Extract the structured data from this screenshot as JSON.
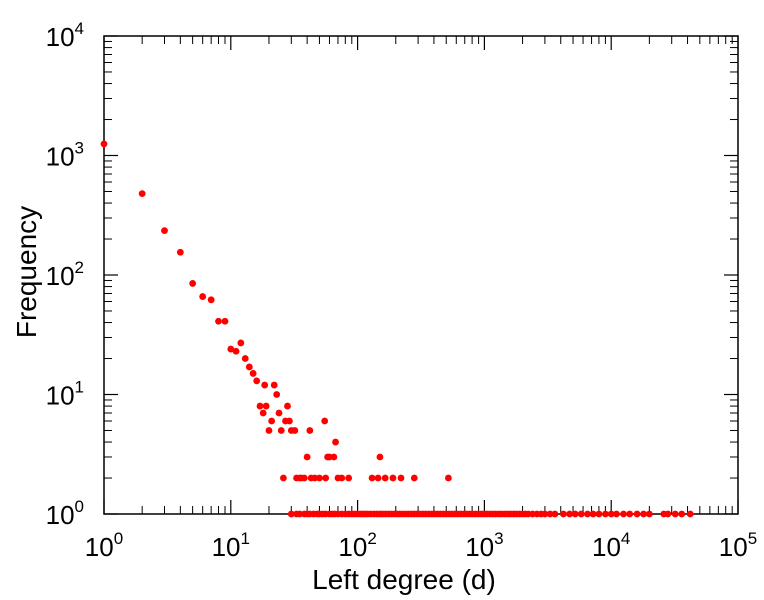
{
  "chart_data": {
    "type": "scatter",
    "xlabel": "Left degree (d)",
    "ylabel": "Frequency",
    "x_scale": "log",
    "y_scale": "log",
    "xlim": [
      1,
      100000
    ],
    "ylim": [
      1,
      10000
    ],
    "x_ticks": [
      {
        "base": "10",
        "exp": "0",
        "value": 1
      },
      {
        "base": "10",
        "exp": "1",
        "value": 10
      },
      {
        "base": "10",
        "exp": "2",
        "value": 100
      },
      {
        "base": "10",
        "exp": "3",
        "value": 1000
      },
      {
        "base": "10",
        "exp": "4",
        "value": 10000
      },
      {
        "base": "10",
        "exp": "5",
        "value": 100000
      }
    ],
    "y_ticks": [
      {
        "base": "10",
        "exp": "0",
        "value": 1
      },
      {
        "base": "10",
        "exp": "1",
        "value": 10
      },
      {
        "base": "10",
        "exp": "2",
        "value": 100
      },
      {
        "base": "10",
        "exp": "3",
        "value": 1000
      },
      {
        "base": "10",
        "exp": "4",
        "value": 10000
      }
    ],
    "grid": false,
    "marker_color": "#ff0000",
    "points": [
      [
        1,
        1250
      ],
      [
        2,
        480
      ],
      [
        3,
        235
      ],
      [
        4,
        155
      ],
      [
        5,
        85
      ],
      [
        6,
        66
      ],
      [
        7,
        62
      ],
      [
        8,
        41
      ],
      [
        9,
        41
      ],
      [
        10,
        24
      ],
      [
        11,
        23
      ],
      [
        12,
        27
      ],
      [
        13,
        20
      ],
      [
        14,
        17
      ],
      [
        15,
        15
      ],
      [
        16,
        13
      ],
      [
        17,
        8
      ],
      [
        18,
        7
      ],
      [
        18.5,
        12
      ],
      [
        19,
        8
      ],
      [
        20,
        5
      ],
      [
        21,
        6
      ],
      [
        22,
        12
      ],
      [
        23,
        10
      ],
      [
        24,
        7
      ],
      [
        25,
        5
      ],
      [
        26,
        2
      ],
      [
        27,
        6
      ],
      [
        28,
        8
      ],
      [
        29,
        6
      ],
      [
        30,
        5
      ],
      [
        32,
        5
      ],
      [
        33,
        2
      ],
      [
        35,
        2
      ],
      [
        36,
        2
      ],
      [
        38,
        2
      ],
      [
        40,
        3
      ],
      [
        42,
        5
      ],
      [
        43,
        2
      ],
      [
        46,
        2
      ],
      [
        50,
        2
      ],
      [
        55,
        6
      ],
      [
        56,
        2
      ],
      [
        58,
        3
      ],
      [
        60,
        3
      ],
      [
        65,
        3
      ],
      [
        67,
        4
      ],
      [
        70,
        2
      ],
      [
        75,
        2
      ],
      [
        85,
        2
      ],
      [
        130,
        2
      ],
      [
        145,
        2
      ],
      [
        150,
        3
      ],
      [
        165,
        2
      ],
      [
        190,
        2
      ],
      [
        220,
        2
      ],
      [
        280,
        2
      ],
      [
        520,
        2
      ],
      [
        30,
        1
      ],
      [
        33,
        1
      ],
      [
        35,
        1
      ],
      [
        38,
        1
      ],
      [
        40,
        1
      ],
      [
        42,
        1
      ],
      [
        45,
        1
      ],
      [
        48,
        1
      ],
      [
        50,
        1
      ],
      [
        53,
        1
      ],
      [
        56,
        1
      ],
      [
        60,
        1
      ],
      [
        63,
        1
      ],
      [
        66,
        1
      ],
      [
        70,
        1
      ],
      [
        75,
        1
      ],
      [
        80,
        1
      ],
      [
        85,
        1
      ],
      [
        90,
        1
      ],
      [
        95,
        1
      ],
      [
        100,
        1
      ],
      [
        105,
        1
      ],
      [
        110,
        1
      ],
      [
        115,
        1
      ],
      [
        120,
        1
      ],
      [
        127,
        1
      ],
      [
        135,
        1
      ],
      [
        142,
        1
      ],
      [
        150,
        1
      ],
      [
        158,
        1
      ],
      [
        166,
        1
      ],
      [
        175,
        1
      ],
      [
        185,
        1
      ],
      [
        195,
        1
      ],
      [
        205,
        1
      ],
      [
        215,
        1
      ],
      [
        227,
        1
      ],
      [
        240,
        1
      ],
      [
        252,
        1
      ],
      [
        266,
        1
      ],
      [
        280,
        1
      ],
      [
        295,
        1
      ],
      [
        310,
        1
      ],
      [
        328,
        1
      ],
      [
        345,
        1
      ],
      [
        365,
        1
      ],
      [
        385,
        1
      ],
      [
        405,
        1
      ],
      [
        427,
        1
      ],
      [
        450,
        1
      ],
      [
        475,
        1
      ],
      [
        500,
        1
      ],
      [
        528,
        1
      ],
      [
        556,
        1
      ],
      [
        586,
        1
      ],
      [
        618,
        1
      ],
      [
        652,
        1
      ],
      [
        688,
        1
      ],
      [
        725,
        1
      ],
      [
        765,
        1
      ],
      [
        806,
        1
      ],
      [
        850,
        1
      ],
      [
        897,
        1
      ],
      [
        946,
        1
      ],
      [
        997,
        1
      ],
      [
        1050,
        1
      ],
      [
        1110,
        1
      ],
      [
        1170,
        1
      ],
      [
        1230,
        1
      ],
      [
        1300,
        1
      ],
      [
        1370,
        1
      ],
      [
        1450,
        1
      ],
      [
        1530,
        1
      ],
      [
        1610,
        1
      ],
      [
        1700,
        1
      ],
      [
        1790,
        1
      ],
      [
        1890,
        1
      ],
      [
        1990,
        1
      ],
      [
        2100,
        1
      ],
      [
        2220,
        1
      ],
      [
        2400,
        1
      ],
      [
        2600,
        1
      ],
      [
        2800,
        1
      ],
      [
        3000,
        1
      ],
      [
        3300,
        1
      ],
      [
        3600,
        1
      ],
      [
        4200,
        1
      ],
      [
        4700,
        1
      ],
      [
        5200,
        1
      ],
      [
        5800,
        1
      ],
      [
        6500,
        1
      ],
      [
        7200,
        1
      ],
      [
        8000,
        1
      ],
      [
        9000,
        1
      ],
      [
        10000,
        1
      ],
      [
        11000,
        1
      ],
      [
        12500,
        1
      ],
      [
        14000,
        1
      ],
      [
        16000,
        1
      ],
      [
        18000,
        1
      ],
      [
        20000,
        1
      ],
      [
        26000,
        1
      ],
      [
        28000,
        1
      ],
      [
        32000,
        1
      ],
      [
        36000,
        1
      ],
      [
        42000,
        1
      ]
    ]
  }
}
